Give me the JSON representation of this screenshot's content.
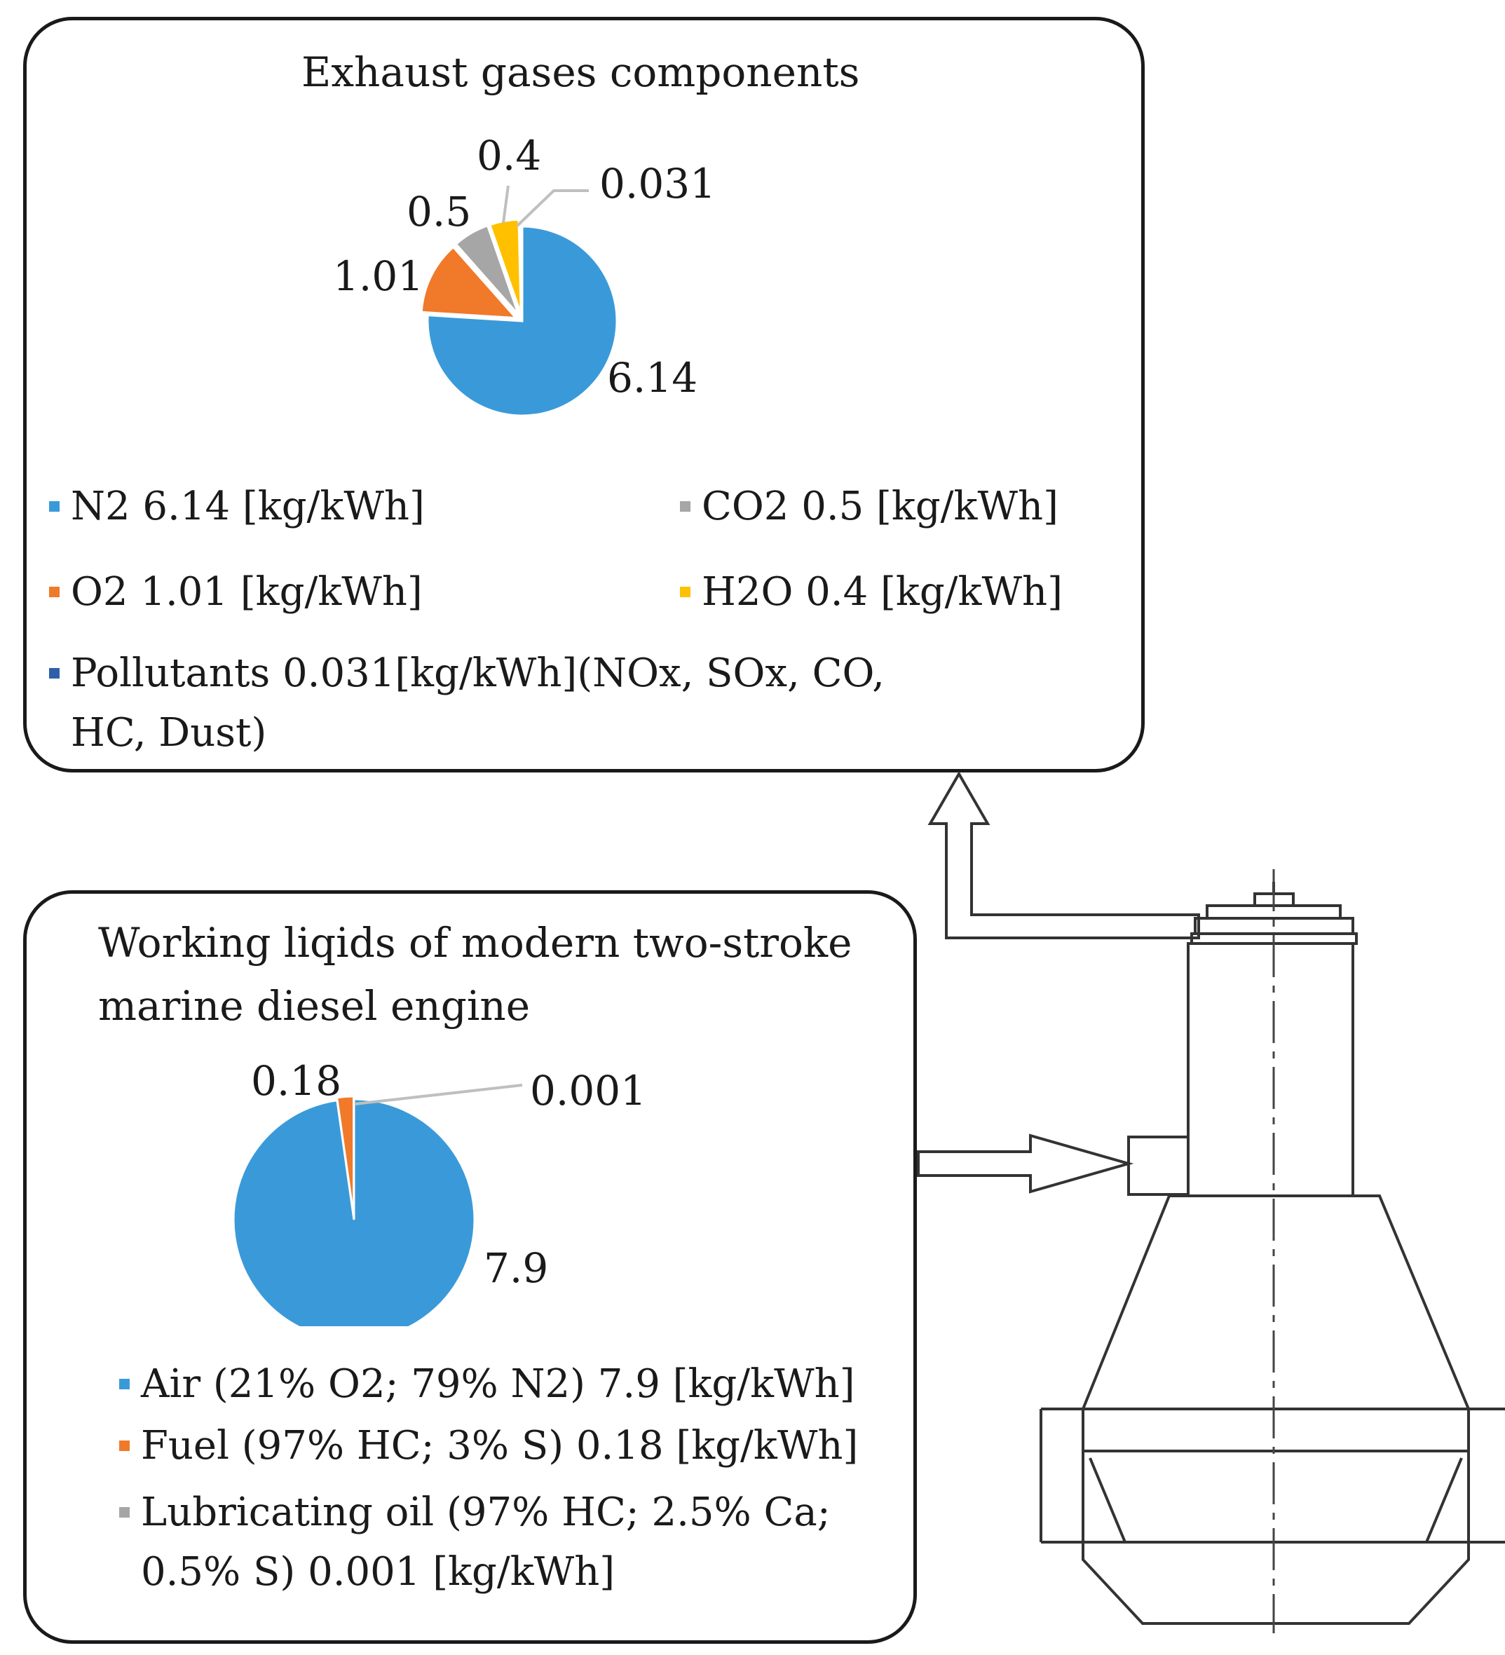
{
  "exhaust": {
    "title": "Exhaust gases components",
    "slice_labels": [
      "6.14",
      "1.01",
      "0.5",
      "0.4",
      "0.031"
    ],
    "legend": [
      {
        "text": "N2  6.14 [kg/kWh]",
        "color": "#3a9ad9"
      },
      {
        "text": "CO2  0.5 [kg/kWh]",
        "color": "#a6a6a6"
      },
      {
        "text": "O2  1.01 [kg/kWh]",
        "color": "#f07a2a"
      },
      {
        "text": "H2O  0.4 [kg/kWh]",
        "color": "#ffc000"
      },
      {
        "text": "Pollutants 0.031[kg/kWh](NOx, SOx, CO, HC, Dust)",
        "color": "#2f5fa8"
      }
    ]
  },
  "liquids": {
    "title": "Working liqids of modern two-stroke marine diesel engine",
    "slice_labels": [
      "7.9",
      "0.18",
      "0.001"
    ],
    "legend": [
      {
        "text": "Air (21% O2; 79% N2) 7.9 [kg/kWh]",
        "color": "#3a9ad9"
      },
      {
        "text": "Fuel (97% HC; 3% S) 0.18 [kg/kWh]",
        "color": "#f07a2a"
      },
      {
        "text": "Lubricating oil (97% HC; 2.5% Ca; 0.5% S) 0.001 [kg/kWh]",
        "color": "#a6a6a6"
      }
    ]
  },
  "chart_data": [
    {
      "type": "pie",
      "title": "Exhaust gases components",
      "categories": [
        "N2",
        "O2",
        "CO2",
        "H2O",
        "Pollutants"
      ],
      "values": [
        6.14,
        1.01,
        0.5,
        0.4,
        0.031
      ],
      "colors": [
        "#3a9ad9",
        "#f07a2a",
        "#a6a6a6",
        "#ffc000",
        "#2f5fa8"
      ],
      "legend": "bottom"
    },
    {
      "type": "pie",
      "title": "Working liqids of modern two-stroke marine diesel engine",
      "categories": [
        "Air",
        "Fuel",
        "Lubricating oil"
      ],
      "values": [
        7.9,
        0.18,
        0.001
      ],
      "colors": [
        "#3a9ad9",
        "#f07a2a",
        "#a6a6a6"
      ],
      "legend": "bottom"
    }
  ]
}
